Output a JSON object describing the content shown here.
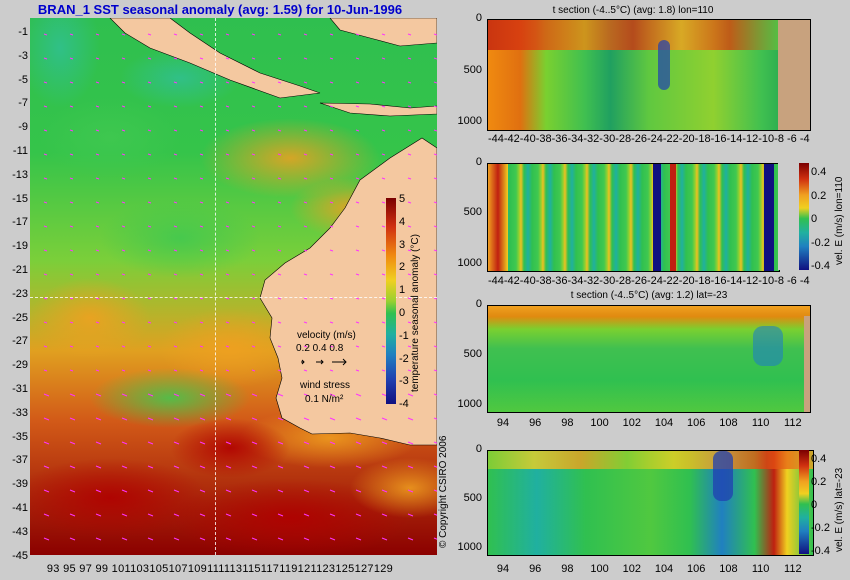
{
  "title": "BRAN_1  SST seasonal anomaly (avg: 1.59) for 10-Jun-1996",
  "map": {
    "y_ticks": [
      "-1",
      "-3",
      "-5",
      "-7",
      "-9",
      "-11",
      "-13",
      "-15",
      "-17",
      "-19",
      "-21",
      "-23",
      "-25",
      "-27",
      "-29",
      "-31",
      "-33",
      "-35",
      "-37",
      "-39",
      "-41",
      "-43",
      "-45"
    ],
    "x_ticks": [
      "93",
      "95",
      "97",
      "99",
      "101",
      "103",
      "105",
      "107",
      "109",
      "111",
      "113",
      "115",
      "117",
      "119",
      "121",
      "123",
      "125",
      "127",
      "129"
    ],
    "x_tick_text": "93 95 97 99 101103105107109111113115117119121123125127129",
    "colorbar": {
      "label": "temperature seasonal anomaly (°C)",
      "ticks": [
        "5",
        "4",
        "3",
        "2",
        "1",
        "0",
        "-1",
        "-2",
        "-3",
        "-4"
      ]
    },
    "velocity_legend": {
      "title": "velocity (m/s)",
      "values": "0.2 0.4 0.8"
    },
    "wind_legend": {
      "title": "wind stress",
      "value": "0.1 N/m²"
    },
    "copyright": "© Copyright CSIRO 2006"
  },
  "panels": [
    {
      "title": "t section (-4..5°C) (avg: 1.8) lon=110",
      "y_ticks": [
        "0",
        "500",
        "1000"
      ],
      "x_ticks": "-44-42-40-38-36-34-32-30-28-26-24-22-20-18-16-14-12-10-8  -6  -4"
    },
    {
      "title": "",
      "y_ticks": [
        "0",
        "500",
        "1000"
      ],
      "x_ticks": "-44-42-40-38-36-34-32-30-28-26-24-22-20-18-16-14-12-10-8  -6  -4",
      "colorbar": {
        "label": "vel. E (m/s) lon=110",
        "ticks": [
          "0.4",
          "0.2",
          "0",
          "-0.2",
          "-0.4"
        ]
      }
    },
    {
      "title": "t section (-4..5°C) (avg: 1.2) lat=-23",
      "y_ticks": [
        "0",
        "500",
        "1000"
      ],
      "x_ticks": [
        "94",
        "96",
        "98",
        "100",
        "102",
        "104",
        "106",
        "108",
        "110",
        "112"
      ]
    },
    {
      "title": "",
      "y_ticks": [
        "0",
        "500",
        "1000"
      ],
      "x_ticks": [
        "94",
        "96",
        "98",
        "100",
        "102",
        "104",
        "106",
        "108",
        "110",
        "112"
      ],
      "colorbar": {
        "label": "vel. E (m/s) lat=-23",
        "ticks": [
          "0.4",
          "0.2",
          "0",
          "-0.2",
          "-0.4"
        ]
      }
    }
  ],
  "colors": {
    "land": "#f4c8a0",
    "section_land": "#c8a27e",
    "anomaly_hot": "#8b0000",
    "anomaly_warm": "#e88a10",
    "anomaly_zero": "#2fbf4f",
    "anomaly_cold": "#1a2a9e",
    "grid": "#ffffff",
    "vector": "#ff33ff"
  }
}
